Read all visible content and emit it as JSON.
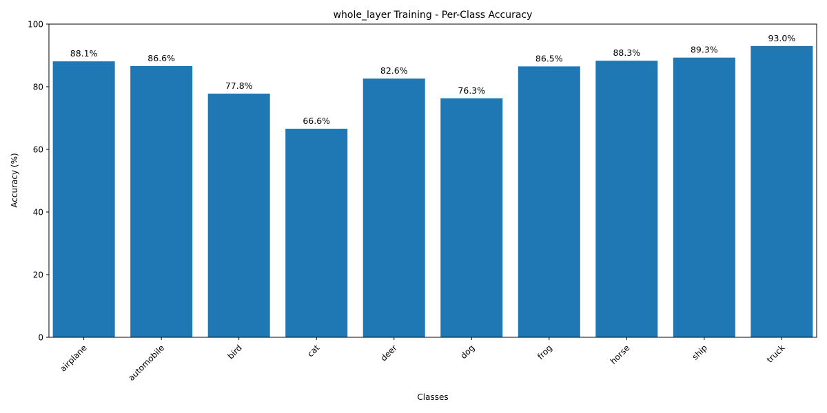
{
  "chart_data": {
    "type": "bar",
    "title": "whole_layer Training - Per-Class Accuracy",
    "xlabel": "Classes",
    "ylabel": "Accuracy (%)",
    "ylim": [
      0,
      100
    ],
    "yticks": [
      0,
      20,
      40,
      60,
      80,
      100
    ],
    "categories": [
      "airplane",
      "automobile",
      "bird",
      "cat",
      "deer",
      "dog",
      "frog",
      "horse",
      "ship",
      "truck"
    ],
    "values": [
      88.1,
      86.6,
      77.8,
      66.6,
      82.6,
      76.3,
      86.5,
      88.3,
      89.3,
      93.0
    ],
    "data_labels": [
      "88.1%",
      "86.6%",
      "77.8%",
      "66.6%",
      "82.6%",
      "76.3%",
      "86.5%",
      "88.3%",
      "89.3%",
      "93.0%"
    ],
    "bar_color": "#1f77b4",
    "grid": false,
    "legend": "none",
    "xtick_rotation_deg": 45
  }
}
